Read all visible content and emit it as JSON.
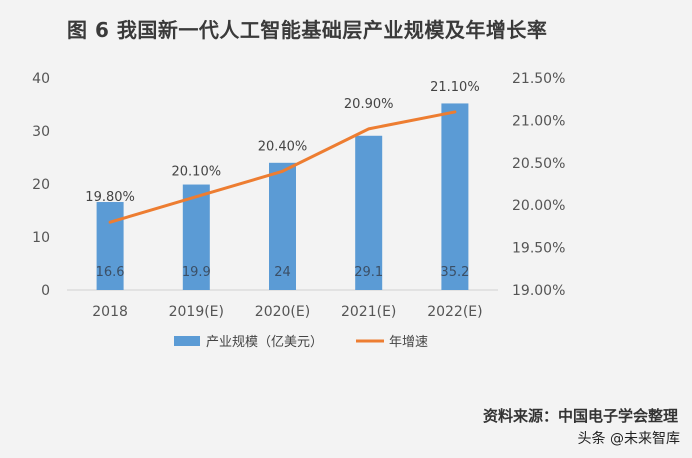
{
  "title": "图 6  我国新一代人工智能基础层产业规模及年增长率",
  "source": "资料来源：中国电子学会整理",
  "watermark": "头条 @未来智库",
  "chart_data": {
    "type": "bar+line",
    "categories": [
      "2018",
      "2019(E)",
      "2020(E)",
      "2021(E)",
      "2022(E)"
    ],
    "series": [
      {
        "name": "产业规模（亿美元）",
        "type": "bar",
        "axis": "left",
        "values": [
          16.6,
          19.9,
          24,
          29.1,
          35.2
        ],
        "labels": [
          "16.6",
          "19.9",
          "24",
          "29.1",
          "35.2"
        ],
        "color": "#5b9bd5"
      },
      {
        "name": "年增速",
        "type": "line",
        "axis": "right",
        "values": [
          19.8,
          20.1,
          20.4,
          20.9,
          21.1
        ],
        "labels": [
          "19.80%",
          "20.10%",
          "20.40%",
          "20.90%",
          "21.10%"
        ],
        "color": "#ed7d31"
      }
    ],
    "y_left": {
      "min": 0,
      "max": 40,
      "ticks": [
        "0",
        "10",
        "20",
        "30",
        "40"
      ]
    },
    "y_right": {
      "min": 19.0,
      "max": 21.5,
      "ticks": [
        "19.00%",
        "19.50%",
        "20.00%",
        "20.50%",
        "21.00%",
        "21.50%"
      ]
    },
    "legend_position": "bottom",
    "grid": false
  }
}
